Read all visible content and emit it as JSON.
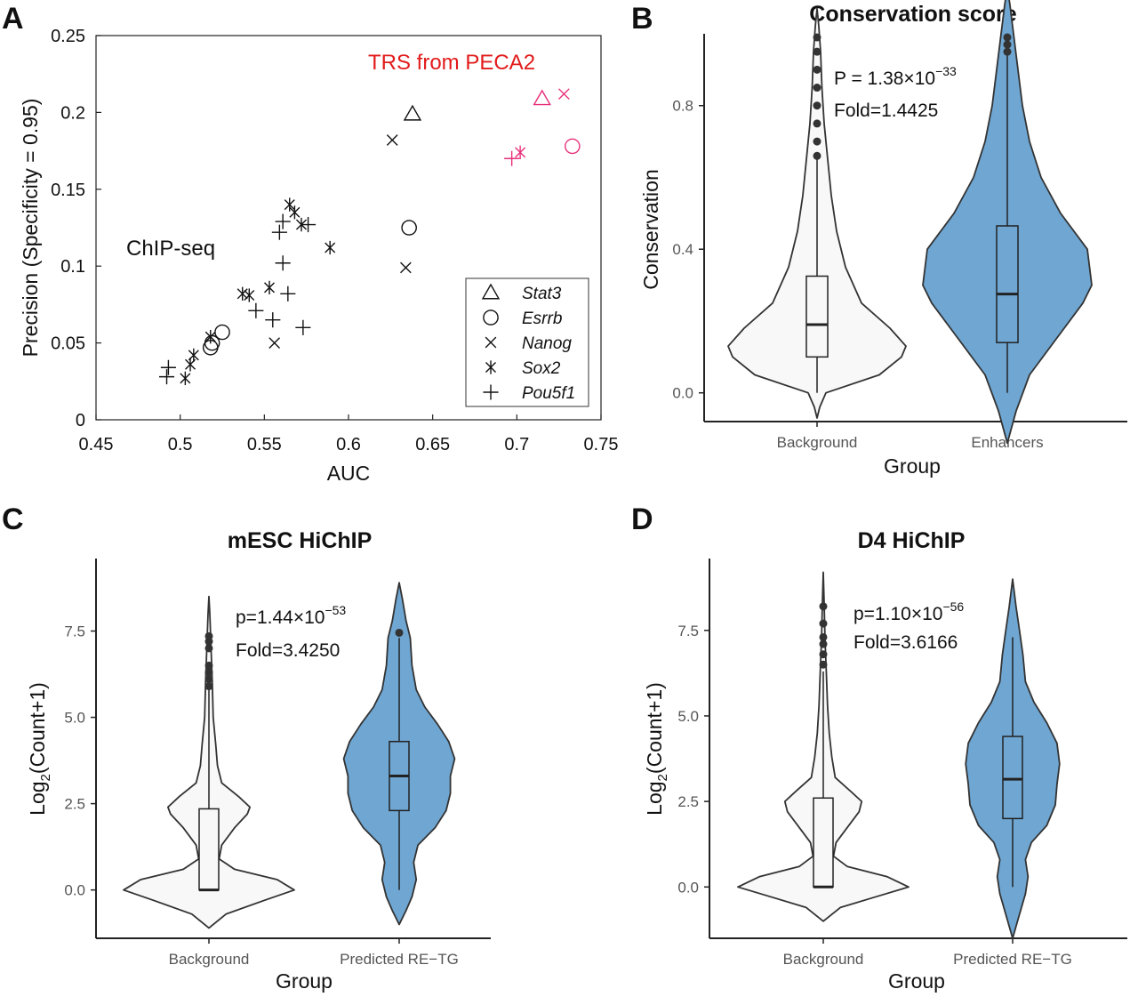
{
  "panels": {
    "A": {
      "letter": "A"
    },
    "B": {
      "letter": "B"
    },
    "C": {
      "letter": "C"
    },
    "D": {
      "letter": "D"
    }
  },
  "chart_data": [
    {
      "panel": "A",
      "type": "scatter",
      "title": "",
      "xlabel": "AUC",
      "ylabel": "Precision (Specificity = 0.95)",
      "xlim": [
        0.45,
        0.75
      ],
      "ylim": [
        0,
        0.25
      ],
      "xticks": [
        "0.45",
        "0.5",
        "0.55",
        "0.6",
        "0.65",
        "0.7",
        "0.75"
      ],
      "yticks": [
        "0",
        "0.05",
        "0.1",
        "0.15",
        "0.2",
        "0.25"
      ],
      "annotations": {
        "chipseq": "ChIP-seq",
        "trs": "TRS from PECA2"
      },
      "colors": {
        "chipseq": "#111111",
        "trs": "#e8307a",
        "trs_label": "#e21b1b"
      },
      "legend": {
        "placement": "bottom-right",
        "entries": [
          {
            "name": "Stat3",
            "marker": "triangle"
          },
          {
            "name": "Esrrb",
            "marker": "circle"
          },
          {
            "name": "Nanog",
            "marker": "x"
          },
          {
            "name": "Sox2",
            "marker": "asterisk"
          },
          {
            "name": "Pou5f1",
            "marker": "plus"
          }
        ]
      },
      "series": [
        {
          "name": "Stat3",
          "marker": "triangle",
          "group": "ChIP-seq",
          "points": [
            [
              0.638,
              0.199
            ]
          ]
        },
        {
          "name": "Esrrb",
          "marker": "circle",
          "group": "ChIP-seq",
          "points": [
            [
              0.636,
              0.125
            ],
            [
              0.525,
              0.057
            ],
            [
              0.518,
              0.047
            ],
            [
              0.519,
              0.05
            ]
          ]
        },
        {
          "name": "Nanog",
          "marker": "x",
          "group": "ChIP-seq",
          "points": [
            [
              0.626,
              0.182
            ],
            [
              0.634,
              0.099
            ],
            [
              0.556,
              0.05
            ]
          ]
        },
        {
          "name": "Sox2",
          "marker": "asterisk",
          "group": "ChIP-seq",
          "points": [
            [
              0.565,
              0.14
            ],
            [
              0.568,
              0.135
            ],
            [
              0.572,
              0.127
            ],
            [
              0.589,
              0.112
            ],
            [
              0.553,
              0.086
            ],
            [
              0.537,
              0.082
            ],
            [
              0.541,
              0.081
            ],
            [
              0.518,
              0.054
            ],
            [
              0.508,
              0.042
            ],
            [
              0.506,
              0.036
            ],
            [
              0.503,
              0.027
            ]
          ]
        },
        {
          "name": "Pou5f1",
          "marker": "plus",
          "group": "ChIP-seq",
          "points": [
            [
              0.561,
              0.129
            ],
            [
              0.576,
              0.127
            ],
            [
              0.559,
              0.122
            ],
            [
              0.561,
              0.102
            ],
            [
              0.564,
              0.082
            ],
            [
              0.545,
              0.071
            ],
            [
              0.555,
              0.065
            ],
            [
              0.573,
              0.06
            ],
            [
              0.493,
              0.034
            ],
            [
              0.492,
              0.028
            ]
          ]
        },
        {
          "name": "Stat3",
          "marker": "triangle",
          "group": "TRS from PECA2",
          "points": [
            [
              0.715,
              0.209
            ]
          ]
        },
        {
          "name": "Esrrb",
          "marker": "circle",
          "group": "TRS from PECA2",
          "points": [
            [
              0.733,
              0.178
            ]
          ]
        },
        {
          "name": "Nanog",
          "marker": "x",
          "group": "TRS from PECA2",
          "points": [
            [
              0.728,
              0.212
            ]
          ]
        },
        {
          "name": "Sox2",
          "marker": "asterisk",
          "group": "TRS from PECA2",
          "points": [
            [
              0.702,
              0.174
            ]
          ]
        },
        {
          "name": "Pou5f1",
          "marker": "plus",
          "group": "TRS from PECA2",
          "points": [
            [
              0.697,
              0.17
            ]
          ]
        }
      ]
    },
    {
      "panel": "B",
      "type": "violin",
      "title": "Conservation score",
      "xlabel": "Group",
      "ylabel": "Conservation",
      "ylim": [
        -0.08,
        1.0
      ],
      "yticks": [
        "0.0",
        "0.4",
        "0.8"
      ],
      "categories": [
        "Background",
        "Enhancers"
      ],
      "fill_colors": [
        "#f8f8f8",
        "#6fa6d2"
      ],
      "stat": {
        "p_prefix": "P = 1.38×10",
        "p_exp": "−33",
        "fold": "Fold=1.4425"
      },
      "series": [
        {
          "name": "Background",
          "violin_min": -0.07,
          "violin_max": 1.07,
          "median": 0.19,
          "q1": 0.1,
          "q3": 0.325,
          "whisker_low": 0.0,
          "whisker_high": 0.65,
          "outliers": [
            0.66,
            0.7,
            0.75,
            0.8,
            0.85,
            0.9,
            0.95,
            0.99
          ],
          "shape": [
            [
              -0.07,
              0.0
            ],
            [
              -0.04,
              0.03
            ],
            [
              0.0,
              0.1
            ],
            [
              0.05,
              0.7
            ],
            [
              0.1,
              0.95
            ],
            [
              0.13,
              1.0
            ],
            [
              0.18,
              0.82
            ],
            [
              0.25,
              0.5
            ],
            [
              0.35,
              0.32
            ],
            [
              0.45,
              0.22
            ],
            [
              0.55,
              0.16
            ],
            [
              0.65,
              0.12
            ],
            [
              0.75,
              0.08
            ],
            [
              0.85,
              0.055
            ],
            [
              0.95,
              0.04
            ],
            [
              1.02,
              0.02
            ],
            [
              1.07,
              0.0
            ]
          ]
        },
        {
          "name": "Enhancers",
          "violin_min": -0.14,
          "violin_max": 1.13,
          "median": 0.275,
          "q1": 0.14,
          "q3": 0.465,
          "whisker_low": 0.0,
          "whisker_high": 0.94,
          "outliers": [
            0.95,
            0.97,
            0.99
          ],
          "shape": [
            [
              -0.14,
              0.0
            ],
            [
              -0.05,
              0.1
            ],
            [
              0.05,
              0.25
            ],
            [
              0.15,
              0.55
            ],
            [
              0.25,
              0.85
            ],
            [
              0.3,
              0.95
            ],
            [
              0.4,
              0.9
            ],
            [
              0.5,
              0.6
            ],
            [
              0.6,
              0.38
            ],
            [
              0.7,
              0.25
            ],
            [
              0.8,
              0.17
            ],
            [
              0.9,
              0.12
            ],
            [
              1.0,
              0.07
            ],
            [
              1.08,
              0.03
            ],
            [
              1.13,
              0.0
            ]
          ]
        }
      ]
    },
    {
      "panel": "C",
      "type": "violin",
      "title": "mESC HiChIP",
      "xlabel": "Group",
      "ylabel": "Log2(Count+1)",
      "ylabel_parts": {
        "pre": "Log",
        "sub": "2",
        "post": "(Count+1)"
      },
      "ylim": [
        -1.4,
        9.6
      ],
      "yticks": [
        "0.0",
        "2.5",
        "5.0",
        "7.5"
      ],
      "categories": [
        "Background",
        "Predicted RE−TG"
      ],
      "fill_colors": [
        "#f8f8f8",
        "#6fa6d2"
      ],
      "stat": {
        "p_prefix": "p=1.44×10",
        "p_exp": "−53",
        "fold": "Fold=3.4250"
      },
      "series": [
        {
          "name": "Background",
          "violin_min": -1.1,
          "violin_max": 8.5,
          "median": 0.0,
          "q1": 0.0,
          "q3": 2.35,
          "whisker_low": 0.0,
          "whisker_high": 5.8,
          "outliers": [
            5.9,
            6.1,
            6.3,
            6.5,
            7.0,
            7.2,
            7.35
          ],
          "shape": [
            [
              -1.1,
              0.0
            ],
            [
              -0.7,
              0.2
            ],
            [
              -0.3,
              0.65
            ],
            [
              0.0,
              1.0
            ],
            [
              0.3,
              0.8
            ],
            [
              0.6,
              0.3
            ],
            [
              0.9,
              0.12
            ],
            [
              1.3,
              0.15
            ],
            [
              1.8,
              0.3
            ],
            [
              2.2,
              0.45
            ],
            [
              2.4,
              0.48
            ],
            [
              2.7,
              0.35
            ],
            [
              3.1,
              0.15
            ],
            [
              3.6,
              0.1
            ],
            [
              4.2,
              0.08
            ],
            [
              5.0,
              0.05
            ],
            [
              6.0,
              0.04
            ],
            [
              7.0,
              0.025
            ],
            [
              8.0,
              0.01
            ],
            [
              8.5,
              0.0
            ]
          ]
        },
        {
          "name": "Predicted RE−TG",
          "violin_min": -1.0,
          "violin_max": 8.9,
          "median": 3.3,
          "q1": 2.3,
          "q3": 4.3,
          "whisker_low": 0.0,
          "whisker_high": 7.3,
          "outliers": [
            7.45
          ],
          "shape": [
            [
              -1.0,
              0.0
            ],
            [
              -0.6,
              0.08
            ],
            [
              -0.2,
              0.15
            ],
            [
              0.3,
              0.2
            ],
            [
              0.8,
              0.17
            ],
            [
              1.3,
              0.22
            ],
            [
              1.8,
              0.42
            ],
            [
              2.3,
              0.55
            ],
            [
              2.8,
              0.6
            ],
            [
              3.3,
              0.6
            ],
            [
              3.8,
              0.65
            ],
            [
              4.3,
              0.58
            ],
            [
              4.8,
              0.45
            ],
            [
              5.3,
              0.3
            ],
            [
              5.8,
              0.2
            ],
            [
              6.5,
              0.15
            ],
            [
              7.3,
              0.13
            ],
            [
              7.8,
              0.08
            ],
            [
              8.4,
              0.04
            ],
            [
              8.9,
              0.0
            ]
          ]
        }
      ]
    },
    {
      "panel": "D",
      "type": "violin",
      "title": "D4 HiChIP",
      "xlabel": "Group",
      "ylabel": "Log2(Count+1)",
      "ylabel_parts": {
        "pre": "Log",
        "sub": "2",
        "post": "(Count+1)"
      },
      "ylim": [
        -1.5,
        9.6
      ],
      "yticks": [
        "0.0",
        "2.5",
        "5.0",
        "7.5"
      ],
      "categories": [
        "Background",
        "Predicted RE−TG"
      ],
      "fill_colors": [
        "#f8f8f8",
        "#6fa6d2"
      ],
      "stat": {
        "p_prefix": "p=1.10×10",
        "p_exp": "−56",
        "fold": "Fold=3.6166"
      },
      "series": [
        {
          "name": "Background",
          "violin_min": -1.0,
          "violin_max": 9.2,
          "median": 0.0,
          "q1": 0.0,
          "q3": 2.6,
          "whisker_low": 0.0,
          "whisker_high": 6.3,
          "outliers": [
            6.5,
            6.8,
            7.1,
            7.3,
            7.7,
            8.2
          ],
          "shape": [
            [
              -1.0,
              0.0
            ],
            [
              -0.6,
              0.2
            ],
            [
              -0.3,
              0.6
            ],
            [
              0.0,
              1.0
            ],
            [
              0.3,
              0.75
            ],
            [
              0.6,
              0.28
            ],
            [
              0.9,
              0.12
            ],
            [
              1.3,
              0.15
            ],
            [
              1.8,
              0.3
            ],
            [
              2.2,
              0.42
            ],
            [
              2.5,
              0.45
            ],
            [
              2.8,
              0.32
            ],
            [
              3.2,
              0.14
            ],
            [
              3.8,
              0.1
            ],
            [
              4.5,
              0.07
            ],
            [
              5.3,
              0.05
            ],
            [
              6.3,
              0.035
            ],
            [
              7.3,
              0.02
            ],
            [
              8.3,
              0.01
            ],
            [
              9.2,
              0.0
            ]
          ]
        },
        {
          "name": "Predicted RE−TG",
          "violin_min": -1.5,
          "violin_max": 9.0,
          "median": 3.15,
          "q1": 2.0,
          "q3": 4.4,
          "whisker_low": 0.0,
          "whisker_high": 7.3,
          "outliers": [],
          "shape": [
            [
              -1.5,
              0.0
            ],
            [
              -0.8,
              0.08
            ],
            [
              -0.2,
              0.15
            ],
            [
              0.3,
              0.18
            ],
            [
              0.8,
              0.15
            ],
            [
              1.3,
              0.22
            ],
            [
              1.8,
              0.4
            ],
            [
              2.4,
              0.5
            ],
            [
              3.0,
              0.52
            ],
            [
              3.6,
              0.55
            ],
            [
              4.2,
              0.52
            ],
            [
              4.8,
              0.4
            ],
            [
              5.4,
              0.25
            ],
            [
              6.0,
              0.15
            ],
            [
              6.8,
              0.12
            ],
            [
              7.5,
              0.08
            ],
            [
              8.2,
              0.04
            ],
            [
              9.0,
              0.0
            ]
          ]
        }
      ]
    }
  ]
}
